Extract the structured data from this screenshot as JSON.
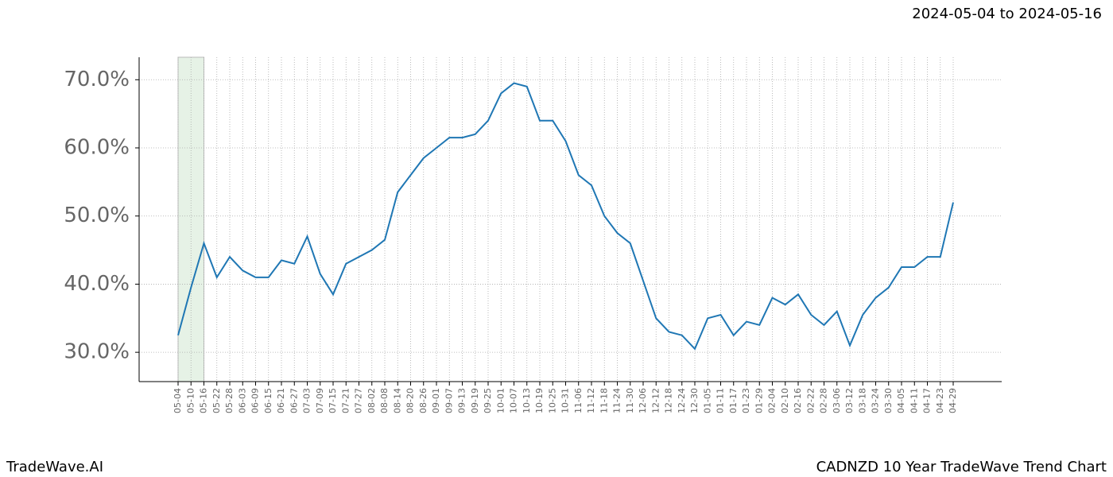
{
  "chart_data": {
    "type": "line",
    "title": "2024-05-04 to 2024-05-16",
    "footer_left": "TradeWave.AI",
    "footer_right": "CADNZD 10 Year TradeWave Trend Chart",
    "categories": [
      "05-04",
      "05-10",
      "05-16",
      "05-22",
      "05-28",
      "06-03",
      "06-09",
      "06-15",
      "06-21",
      "06-27",
      "07-03",
      "07-09",
      "07-15",
      "07-21",
      "07-27",
      "08-02",
      "08-08",
      "08-14",
      "08-20",
      "08-26",
      "09-01",
      "09-07",
      "09-13",
      "09-19",
      "09-25",
      "10-01",
      "10-07",
      "10-13",
      "10-19",
      "10-25",
      "10-31",
      "11-06",
      "11-12",
      "11-18",
      "11-24",
      "11-30",
      "12-06",
      "12-12",
      "12-18",
      "12-24",
      "12-30",
      "01-05",
      "01-11",
      "01-17",
      "01-23",
      "01-29",
      "02-04",
      "02-10",
      "02-16",
      "02-22",
      "02-28",
      "03-06",
      "03-12",
      "03-18",
      "03-24",
      "03-30",
      "04-05",
      "04-11",
      "04-17",
      "04-23",
      "04-29"
    ],
    "series": [
      {
        "name": "CADNZD",
        "color": "#1f77b4",
        "values": [
          32.5,
          39.5,
          46,
          41,
          44,
          42,
          41,
          41,
          43.5,
          43,
          47,
          41.5,
          38.5,
          43,
          44,
          45,
          46.5,
          53.5,
          56,
          58.5,
          60,
          61.5,
          61.5,
          62,
          64,
          68,
          69.5,
          69,
          64,
          64,
          61,
          56,
          54.5,
          50,
          47.5,
          46,
          40.5,
          35,
          33,
          32.5,
          30.5,
          35,
          35.5,
          32.5,
          34.5,
          34,
          38,
          37,
          38.5,
          35.5,
          34,
          36,
          31,
          35.5,
          38,
          39.5,
          42.5,
          42.5,
          44,
          44,
          52
        ]
      }
    ],
    "highlight": [
      0,
      2
    ],
    "highlight_color": "#e6f2e6",
    "ylim": [
      25.7,
      73.3
    ],
    "yticks": [
      {
        "value": 30,
        "label": "30.0%"
      },
      {
        "value": 40,
        "label": "40.0%"
      },
      {
        "value": 50,
        "label": "50.0%"
      },
      {
        "value": 60,
        "label": "60.0%"
      },
      {
        "value": 70,
        "label": "70.0%"
      }
    ],
    "grid": true
  }
}
